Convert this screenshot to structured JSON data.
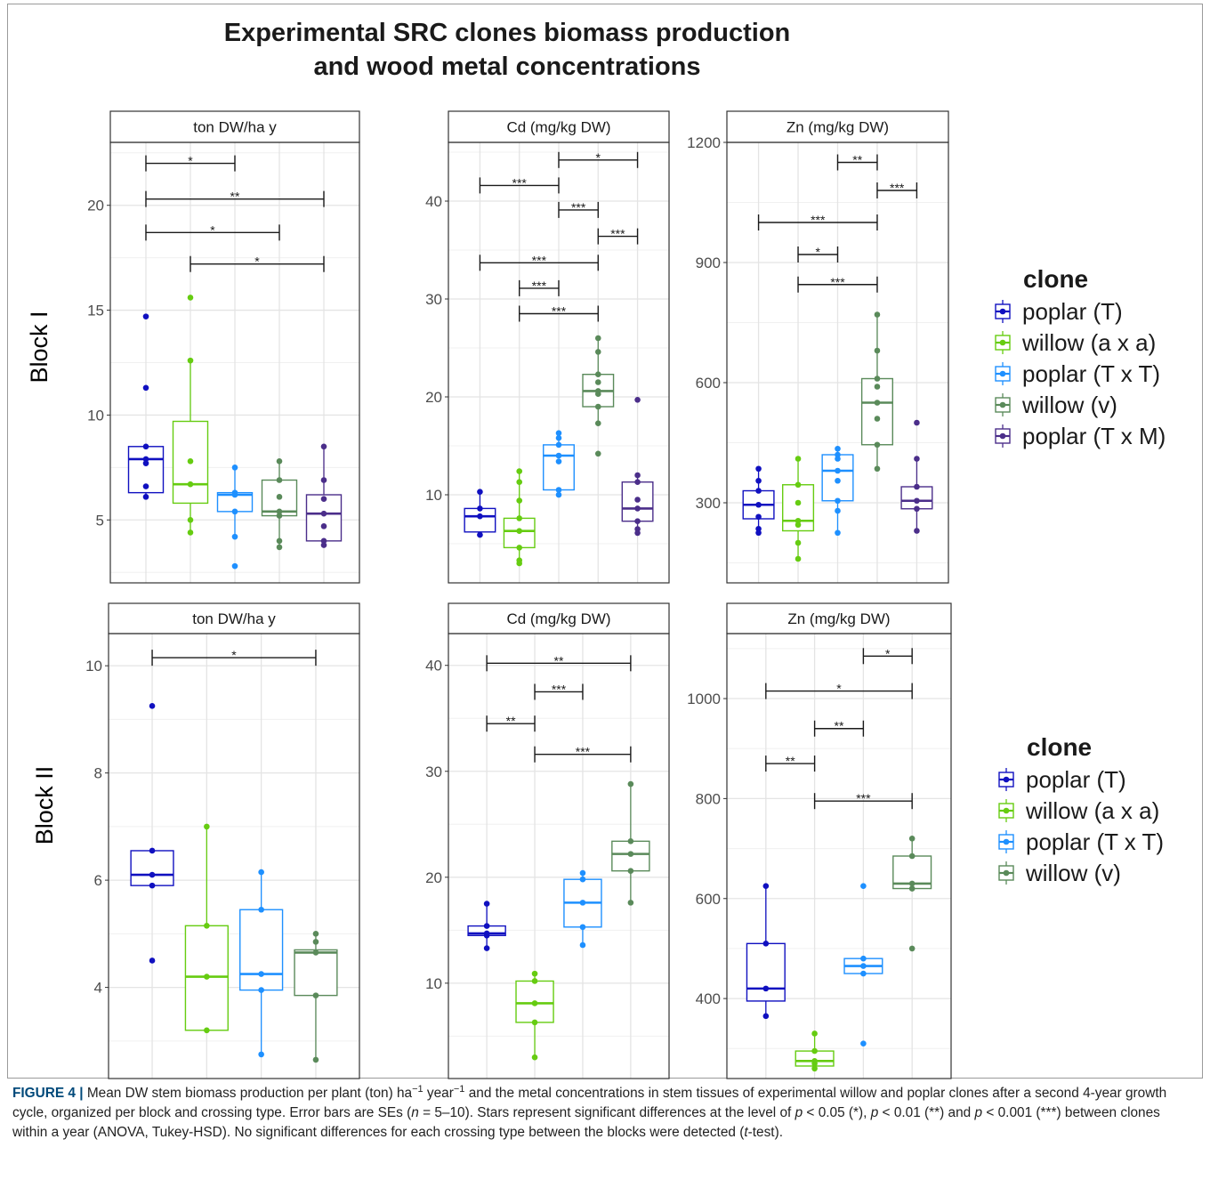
{
  "figure": {
    "title_line1": "Experimental SRC clones biomass production",
    "title_line2": "and wood metal concentrations"
  },
  "caption": {
    "label": "FIGURE 4 |",
    "text_part1": " Mean DW stem biomass production per plant (ton) ha",
    "sup1": "−1",
    "text_part2": " year",
    "sup2": "−1",
    "text_part3": " and the metal concentrations in stem tissues of experimental willow and poplar clones after a second 4-year growth cycle, organized per block and crossing type. Error bars are SEs (",
    "n_var": "n",
    "text_part4": " = 5–10). Stars represent significant differences at the level of ",
    "p1": "p",
    "text_part5": " < 0.05 (*), ",
    "p2": "p",
    "text_part6": " < 0.01 (**) and ",
    "p3": "p",
    "text_part7": " < 0.001 (***) between clones within a year (ANOVA, Tukey-HSD). No significant differences for each crossing type between the blocks were detected (",
    "t_var": "t",
    "text_part8": "-test)."
  },
  "chart_data": [
    {
      "type": "box",
      "block": "Block I",
      "legend_title": "clone",
      "legend": [
        {
          "name": "poplar (T)",
          "color": "#1010c0"
        },
        {
          "name": "willow (a x a)",
          "color": "#66cc11"
        },
        {
          "name": "poplar (T x T)",
          "color": "#1e90ff"
        },
        {
          "name": "willow (v)",
          "color": "#5a8a5a"
        },
        {
          "name": "poplar (T x M)",
          "color": "#4b2e8a"
        }
      ],
      "panels": [
        {
          "strip": "ton DW/ha y",
          "ylim": [
            2,
            23
          ],
          "ticks": [
            5,
            10,
            15,
            20
          ],
          "tick_labels": [
            "5",
            "10",
            "15",
            "20"
          ],
          "boxes": [
            {
              "clone": "poplar (T)",
              "q1": 6.3,
              "median": 7.9,
              "q3": 8.5,
              "whisker_low": 6.1,
              "whisker_high": 8.5,
              "points": [
                6.1,
                6.6,
                7.7,
                7.9,
                8.5,
                11.3,
                14.7
              ]
            },
            {
              "clone": "willow (a x a)",
              "q1": 5.8,
              "median": 6.7,
              "q3": 9.7,
              "whisker_low": 4.4,
              "whisker_high": 12.6,
              "points": [
                4.4,
                5.0,
                6.7,
                7.8,
                12.6,
                15.6
              ]
            },
            {
              "clone": "poplar (T x T)",
              "q1": 5.4,
              "median": 6.2,
              "q3": 6.3,
              "whisker_low": 4.2,
              "whisker_high": 7.5,
              "points": [
                2.8,
                4.2,
                5.4,
                6.2,
                6.3,
                7.5
              ]
            },
            {
              "clone": "willow (v)",
              "q1": 5.2,
              "median": 5.4,
              "q3": 6.9,
              "whisker_low": 3.7,
              "whisker_high": 7.8,
              "points": [
                3.7,
                4.0,
                5.2,
                5.4,
                6.1,
                6.9,
                7.8
              ]
            },
            {
              "clone": "poplar (T x M)",
              "q1": 4.0,
              "median": 5.3,
              "q3": 6.2,
              "whisker_low": 3.8,
              "whisker_high": 8.5,
              "points": [
                3.8,
                4.0,
                4.7,
                5.3,
                6.0,
                6.9,
                8.5
              ]
            }
          ],
          "brackets": [
            {
              "from": 1,
              "to": 3,
              "y": 22.0,
              "stars": "*"
            },
            {
              "from": 1,
              "to": 5,
              "y": 20.3,
              "stars": "**"
            },
            {
              "from": 1,
              "to": 4,
              "y": 18.7,
              "stars": "*"
            },
            {
              "from": 2,
              "to": 5,
              "y": 17.2,
              "stars": "*"
            }
          ]
        },
        {
          "strip": "Cd (mg/kg DW)",
          "ylim": [
            1,
            46
          ],
          "ticks": [
            10,
            20,
            30,
            40
          ],
          "tick_labels": [
            "10",
            "20",
            "30",
            "40"
          ],
          "boxes": [
            {
              "clone": "poplar (T)",
              "q1": 6.2,
              "median": 7.8,
              "q3": 8.6,
              "whisker_low": 5.9,
              "whisker_high": 10.3,
              "points": [
                5.9,
                7.8,
                8.6,
                10.3
              ]
            },
            {
              "clone": "willow (a x a)",
              "q1": 4.6,
              "median": 6.3,
              "q3": 7.6,
              "whisker_low": 3.0,
              "whisker_high": 12.4,
              "points": [
                3.0,
                3.3,
                4.6,
                6.3,
                7.6,
                9.4,
                11.3,
                12.4
              ]
            },
            {
              "clone": "poplar (T x T)",
              "q1": 10.5,
              "median": 14.0,
              "q3": 15.1,
              "whisker_low": 10.0,
              "whisker_high": 16.3,
              "points": [
                10.0,
                10.5,
                13.4,
                14.0,
                15.1,
                15.8,
                16.3
              ]
            },
            {
              "clone": "willow (v)",
              "q1": 19.0,
              "median": 20.6,
              "q3": 22.3,
              "whisker_low": 17.3,
              "whisker_high": 26.0,
              "points": [
                14.2,
                17.3,
                19.0,
                20.3,
                20.6,
                21.5,
                22.3,
                24.6,
                26.0
              ]
            },
            {
              "clone": "poplar (T x M)",
              "q1": 7.3,
              "median": 8.6,
              "q3": 11.3,
              "whisker_low": 6.1,
              "whisker_high": 12.0,
              "points": [
                6.1,
                6.5,
                7.3,
                8.6,
                9.5,
                11.3,
                12.0,
                19.7
              ]
            }
          ],
          "brackets": [
            {
              "from": 3,
              "to": 5,
              "y": 44.2,
              "stars": "*"
            },
            {
              "from": 1,
              "to": 3,
              "y": 41.6,
              "stars": "***"
            },
            {
              "from": 3,
              "to": 4,
              "y": 39.1,
              "stars": "***"
            },
            {
              "from": 4,
              "to": 5,
              "y": 36.4,
              "stars": "***"
            },
            {
              "from": 1,
              "to": 4,
              "y": 33.7,
              "stars": "***"
            },
            {
              "from": 2,
              "to": 3,
              "y": 31.1,
              "stars": "***"
            },
            {
              "from": 2,
              "to": 4,
              "y": 28.5,
              "stars": "***"
            }
          ]
        },
        {
          "strip": "Zn (mg/kg DW)",
          "ylim": [
            100,
            1200
          ],
          "ticks": [
            300,
            600,
            900,
            1200
          ],
          "tick_labels": [
            "300",
            "600",
            "900",
            "1200"
          ],
          "boxes": [
            {
              "clone": "poplar (T)",
              "q1": 260,
              "median": 295,
              "q3": 330,
              "whisker_low": 225,
              "whisker_high": 385,
              "points": [
                225,
                235,
                265,
                295,
                330,
                355,
                385
              ]
            },
            {
              "clone": "willow (a x a)",
              "q1": 230,
              "median": 255,
              "q3": 345,
              "whisker_low": 160,
              "whisker_high": 410,
              "points": [
                160,
                200,
                245,
                255,
                300,
                345,
                410
              ]
            },
            {
              "clone": "poplar (T x T)",
              "q1": 305,
              "median": 380,
              "q3": 420,
              "whisker_low": 225,
              "whisker_high": 435,
              "points": [
                225,
                280,
                305,
                355,
                380,
                410,
                420,
                435
              ]
            },
            {
              "clone": "willow (v)",
              "q1": 445,
              "median": 550,
              "q3": 610,
              "whisker_low": 385,
              "whisker_high": 770,
              "points": [
                385,
                445,
                510,
                550,
                590,
                610,
                680,
                770
              ]
            },
            {
              "clone": "poplar (T x M)",
              "q1": 285,
              "median": 305,
              "q3": 340,
              "whisker_low": 230,
              "whisker_high": 410,
              "points": [
                230,
                285,
                305,
                340,
                410,
                500
              ]
            }
          ],
          "brackets": [
            {
              "from": 3,
              "to": 4,
              "y": 1150,
              "stars": "**"
            },
            {
              "from": 4,
              "to": 5,
              "y": 1080,
              "stars": "***"
            },
            {
              "from": 1,
              "to": 4,
              "y": 1000,
              "stars": "***"
            },
            {
              "from": 2,
              "to": 3,
              "y": 920,
              "stars": "*"
            },
            {
              "from": 2,
              "to": 4,
              "y": 845,
              "stars": "***"
            }
          ]
        }
      ]
    },
    {
      "type": "box",
      "block": "Block II",
      "legend_title": "clone",
      "legend": [
        {
          "name": "poplar (T)",
          "color": "#1010c0"
        },
        {
          "name": "willow (a x a)",
          "color": "#66cc11"
        },
        {
          "name": "poplar (T x T)",
          "color": "#1e90ff"
        },
        {
          "name": "willow (v)",
          "color": "#5a8a5a"
        }
      ],
      "panels": [
        {
          "strip": "ton DW/ha y",
          "ylim": [
            2.3,
            10.6
          ],
          "ticks": [
            4,
            6,
            8,
            10
          ],
          "tick_labels": [
            "4",
            "6",
            "8",
            "10"
          ],
          "boxes": [
            {
              "clone": "poplar (T)",
              "q1": 5.9,
              "median": 6.1,
              "q3": 6.55,
              "whisker_low": 5.9,
              "whisker_high": 6.55,
              "points": [
                4.5,
                5.9,
                6.1,
                6.55,
                9.25
              ]
            },
            {
              "clone": "willow (a x a)",
              "q1": 3.2,
              "median": 4.2,
              "q3": 5.15,
              "whisker_low": 3.2,
              "whisker_high": 7.0,
              "points": [
                3.2,
                4.2,
                5.15,
                7.0
              ]
            },
            {
              "clone": "poplar (T x T)",
              "q1": 3.95,
              "median": 4.25,
              "q3": 5.45,
              "whisker_low": 2.75,
              "whisker_high": 6.15,
              "points": [
                2.75,
                3.95,
                4.25,
                5.45,
                6.15
              ]
            },
            {
              "clone": "willow (v)",
              "q1": 3.85,
              "median": 4.65,
              "q3": 4.7,
              "whisker_low": 2.65,
              "whisker_high": 5.0,
              "points": [
                2.65,
                3.85,
                4.65,
                4.85,
                5.0
              ]
            }
          ],
          "brackets": [
            {
              "from": 1,
              "to": 4,
              "y": 10.15,
              "stars": "*"
            }
          ]
        },
        {
          "strip": "Cd (mg/kg DW)",
          "ylim": [
            1,
            43
          ],
          "ticks": [
            10,
            20,
            30,
            40
          ],
          "tick_labels": [
            "10",
            "20",
            "30",
            "40"
          ],
          "boxes": [
            {
              "clone": "poplar (T)",
              "q1": 14.5,
              "median": 14.7,
              "q3": 15.4,
              "whisker_low": 13.3,
              "whisker_high": 17.5,
              "points": [
                13.3,
                14.5,
                14.7,
                15.4,
                17.5
              ]
            },
            {
              "clone": "willow (a x a)",
              "q1": 6.3,
              "median": 8.1,
              "q3": 10.2,
              "whisker_low": 3.0,
              "whisker_high": 10.9,
              "points": [
                3.0,
                6.3,
                8.1,
                10.2,
                10.9
              ]
            },
            {
              "clone": "poplar (T x T)",
              "q1": 15.3,
              "median": 17.6,
              "q3": 19.8,
              "whisker_low": 13.6,
              "whisker_high": 20.4,
              "points": [
                13.6,
                15.3,
                17.6,
                19.8,
                20.4
              ]
            },
            {
              "clone": "willow (v)",
              "q1": 20.6,
              "median": 22.2,
              "q3": 23.4,
              "whisker_low": 17.6,
              "whisker_high": 28.8,
              "points": [
                17.6,
                20.6,
                22.2,
                23.4,
                28.8
              ]
            }
          ],
          "brackets": [
            {
              "from": 1,
              "to": 4,
              "y": 40.2,
              "stars": "**"
            },
            {
              "from": 2,
              "to": 3,
              "y": 37.5,
              "stars": "***"
            },
            {
              "from": 1,
              "to": 2,
              "y": 34.5,
              "stars": "**"
            },
            {
              "from": 2,
              "to": 4,
              "y": 31.6,
              "stars": "***"
            }
          ]
        },
        {
          "strip": "Zn (mg/kg DW)",
          "ylim": [
            240,
            1130
          ],
          "ticks": [
            400,
            600,
            800,
            1000
          ],
          "tick_labels": [
            "400",
            "600",
            "800",
            "1000"
          ],
          "boxes": [
            {
              "clone": "poplar (T)",
              "q1": 395,
              "median": 420,
              "q3": 510,
              "whisker_low": 365,
              "whisker_high": 625,
              "points": [
                365,
                420,
                510,
                625
              ]
            },
            {
              "clone": "willow (a x a)",
              "q1": 265,
              "median": 275,
              "q3": 295,
              "whisker_low": 260,
              "whisker_high": 330,
              "points": [
                260,
                270,
                275,
                295,
                330
              ]
            },
            {
              "clone": "poplar (T x T)",
              "q1": 450,
              "median": 465,
              "q3": 480,
              "whisker_low": 450,
              "whisker_high": 480,
              "points": [
                310,
                450,
                465,
                480,
                625
              ]
            },
            {
              "clone": "willow (v)",
              "q1": 620,
              "median": 630,
              "q3": 685,
              "whisker_low": 620,
              "whisker_high": 720,
              "points": [
                500,
                620,
                630,
                685,
                720
              ]
            }
          ],
          "brackets": [
            {
              "from": 3,
              "to": 4,
              "y": 1085,
              "stars": "*"
            },
            {
              "from": 1,
              "to": 4,
              "y": 1015,
              "stars": "*"
            },
            {
              "from": 2,
              "to": 3,
              "y": 940,
              "stars": "**"
            },
            {
              "from": 1,
              "to": 2,
              "y": 870,
              "stars": "**"
            },
            {
              "from": 2,
              "to": 4,
              "y": 795,
              "stars": "***"
            }
          ]
        }
      ]
    }
  ]
}
